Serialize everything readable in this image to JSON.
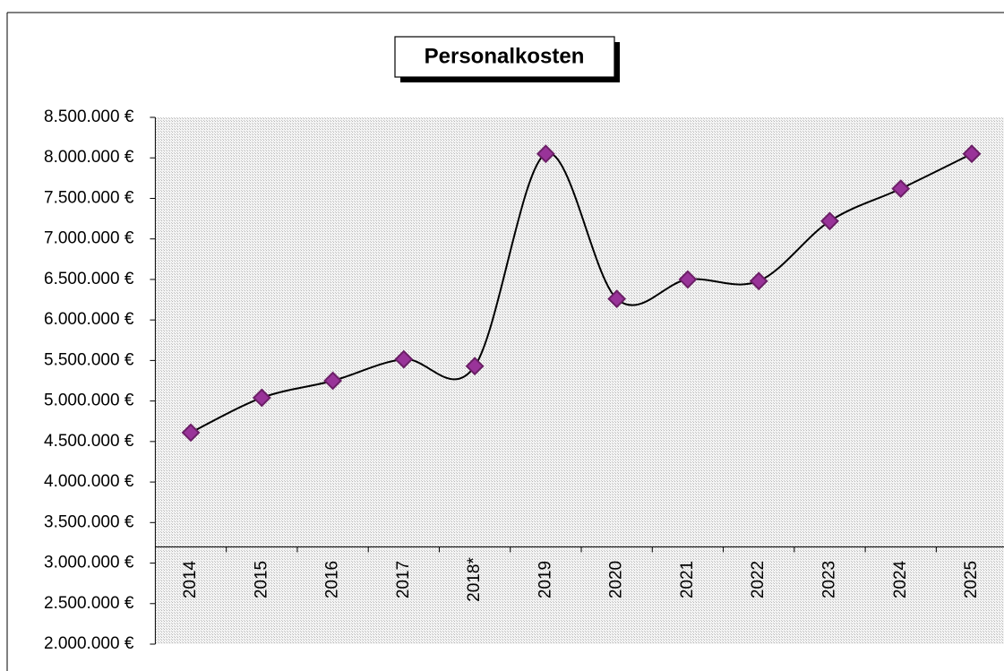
{
  "chart_data": {
    "type": "line",
    "title": "Personalkosten",
    "categories": [
      "2014",
      "2015",
      "2016",
      "2017",
      "2018*",
      "2019",
      "2020",
      "2021",
      "2022",
      "2023",
      "2024",
      "2025"
    ],
    "series": [
      {
        "name": "Personalkosten",
        "color": "#993399",
        "values": [
          4610000,
          5040000,
          5250000,
          5515000,
          5430000,
          8050000,
          6260000,
          6500000,
          6480000,
          7220000,
          7620000,
          8050000
        ]
      }
    ],
    "ylim": [
      2000000,
      8500000
    ],
    "yticks": [
      {
        "value": 2000000,
        "label": "2.000.000 €"
      },
      {
        "value": 2500000,
        "label": "2.500.000 €"
      },
      {
        "value": 3000000,
        "label": "3.000.000 €"
      },
      {
        "value": 3500000,
        "label": "3.500.000 €"
      },
      {
        "value": 4000000,
        "label": "4.000.000 €"
      },
      {
        "value": 4500000,
        "label": "4.500.000 €"
      },
      {
        "value": 5000000,
        "label": "5.000.000 €"
      },
      {
        "value": 5500000,
        "label": "5.500.000 €"
      },
      {
        "value": 6000000,
        "label": "6.000.000 €"
      },
      {
        "value": 6500000,
        "label": "6.500.000 €"
      },
      {
        "value": 7000000,
        "label": "7.000.000 €"
      },
      {
        "value": 7500000,
        "label": "7.500.000 €"
      },
      {
        "value": 8000000,
        "label": "8.000.000 €"
      },
      {
        "value": 8500000,
        "label": "8.500.000 €"
      }
    ],
    "xaxis_crossing": 3200000,
    "smooth": true,
    "grid": false
  }
}
